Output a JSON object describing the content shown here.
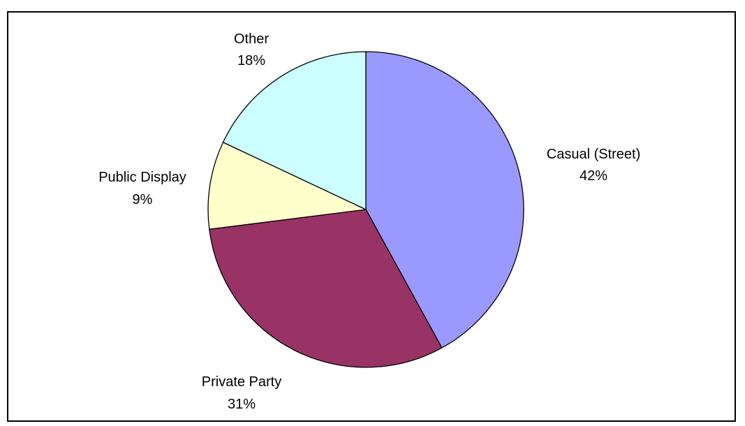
{
  "chart_data": {
    "type": "pie",
    "title": "",
    "slices": [
      {
        "label": "Casual (Street)",
        "value": 42,
        "value_label": "42%",
        "color": "#9999ff"
      },
      {
        "label": "Private Party",
        "value": 31,
        "value_label": "31%",
        "color": "#993366"
      },
      {
        "label": "Public Display",
        "value": 9,
        "value_label": "9%",
        "color": "#ffffcc"
      },
      {
        "label": "Other",
        "value": 18,
        "value_label": "18%",
        "color": "#ccffff"
      }
    ],
    "start_angle_deg": 0,
    "direction": "clockwise",
    "legend": "none"
  }
}
